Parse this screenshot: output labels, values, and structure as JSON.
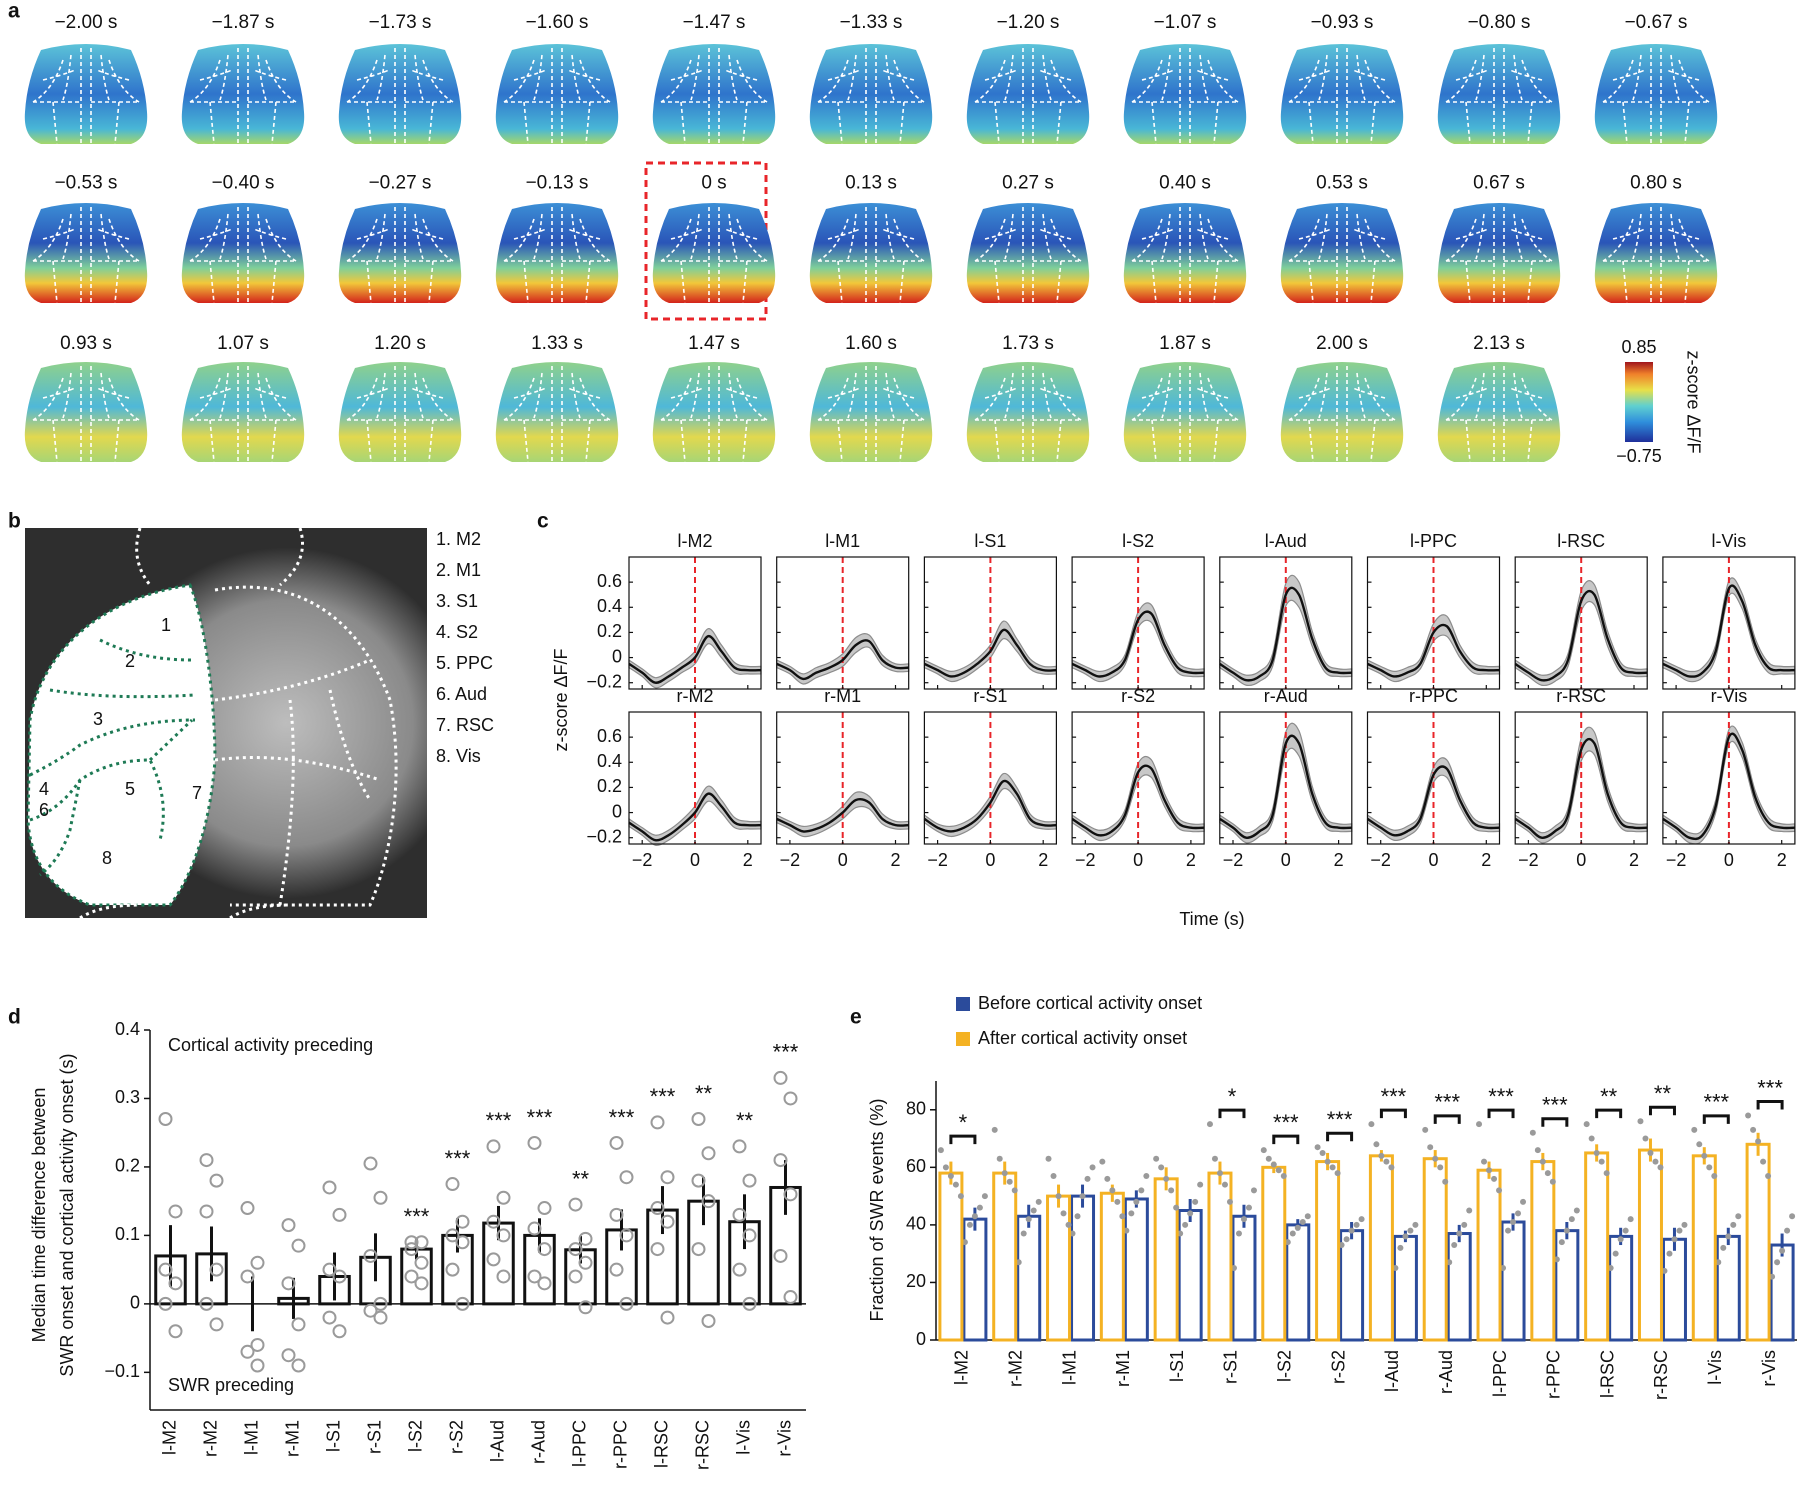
{
  "panel_labels": [
    "a",
    "b",
    "c",
    "d",
    "e"
  ],
  "panel_a": {
    "times": [
      "−2.00 s",
      "−1.87 s",
      "−1.73 s",
      "−1.60 s",
      "−1.47 s",
      "−1.33 s",
      "−1.20 s",
      "−1.07 s",
      "−0.93 s",
      "−0.80 s",
      "−0.67 s",
      "−0.53 s",
      "−0.40 s",
      "−0.27 s",
      "−0.13 s",
      "0 s",
      "0.13 s",
      "0.27 s",
      "0.40 s",
      "0.53 s",
      "0.67 s",
      "0.80 s",
      "0.93 s",
      "1.07 s",
      "1.20 s",
      "1.33 s",
      "1.47 s",
      "1.60 s",
      "1.73 s",
      "1.87 s",
      "2.00 s",
      "2.13 s"
    ],
    "colorbar": {
      "label": "z-score ΔF/F",
      "lim": [
        -0.75,
        0.85
      ],
      "ticks": [
        0.85,
        {
          "value": -0.75,
          "label": "−0.75"
        }
      ]
    }
  },
  "panel_b": {
    "map_labels": [
      "1",
      "2",
      "3",
      "4",
      "5",
      "6",
      "7",
      "8"
    ],
    "legend": [
      "1. M2",
      "2. M1",
      "3. S1",
      "4. S2",
      "5. PPC",
      "6. Aud",
      "7. RSC",
      "8. Vis"
    ]
  },
  "chart_data": [
    {
      "type": "line",
      "xlabel": "Time (s)",
      "ylabel": "z-score ΔF/F",
      "x": [
        -2.5,
        -2,
        -1.5,
        -1,
        -0.5,
        0,
        0.5,
        1,
        1.5,
        2,
        2.5
      ],
      "xlim": [
        -2.5,
        2.5
      ],
      "xticks": [
        {
          "value": -2,
          "label": "−2"
        },
        0,
        2
      ],
      "ylim": [
        -0.25,
        0.8
      ],
      "yticks": [
        {
          "value": -0.2,
          "label": "−0.2"
        },
        0,
        0.2,
        0.4,
        0.6
      ],
      "onset": 0,
      "color": "#111111",
      "band_color": "#c8c8c8",
      "onset_color": "#e8252a",
      "series": [
        {
          "name": "l-M2",
          "values": [
            -0.05,
            -0.12,
            -0.2,
            -0.15,
            -0.08,
            0.0,
            0.17,
            0.05,
            -0.08,
            -0.1,
            -0.1
          ],
          "errors": [
            0.03,
            0.03,
            0.04,
            0.04,
            0.04,
            0.05,
            0.06,
            0.05,
            0.04,
            0.03,
            0.03
          ]
        },
        {
          "name": "l-M1",
          "values": [
            -0.05,
            -0.1,
            -0.17,
            -0.12,
            -0.08,
            -0.02,
            0.1,
            0.13,
            -0.02,
            -0.08,
            -0.08
          ],
          "errors": [
            0.03,
            0.03,
            0.04,
            0.04,
            0.04,
            0.05,
            0.06,
            0.05,
            0.04,
            0.03,
            0.03
          ]
        },
        {
          "name": "l-S1",
          "values": [
            -0.05,
            -0.1,
            -0.15,
            -0.12,
            -0.05,
            0.05,
            0.22,
            0.1,
            -0.05,
            -0.1,
            -0.1
          ],
          "errors": [
            0.03,
            0.03,
            0.04,
            0.04,
            0.04,
            0.05,
            0.07,
            0.05,
            0.04,
            0.03,
            0.03
          ]
        },
        {
          "name": "l-S2",
          "values": [
            -0.05,
            -0.1,
            -0.15,
            -0.12,
            -0.02,
            0.3,
            0.35,
            0.1,
            -0.08,
            -0.12,
            -0.12
          ],
          "errors": [
            0.03,
            0.03,
            0.04,
            0.04,
            0.04,
            0.06,
            0.07,
            0.05,
            0.04,
            0.03,
            0.03
          ]
        },
        {
          "name": "l-Aud",
          "values": [
            -0.05,
            -0.12,
            -0.18,
            -0.15,
            -0.02,
            0.5,
            0.5,
            0.15,
            -0.08,
            -0.12,
            -0.12
          ],
          "errors": [
            0.03,
            0.03,
            0.04,
            0.04,
            0.05,
            0.09,
            0.1,
            0.06,
            0.04,
            0.03,
            0.03
          ]
        },
        {
          "name": "l-PPC",
          "values": [
            -0.05,
            -0.1,
            -0.15,
            -0.12,
            -0.05,
            0.2,
            0.25,
            0.05,
            -0.08,
            -0.1,
            -0.1
          ],
          "errors": [
            0.03,
            0.03,
            0.04,
            0.04,
            0.04,
            0.07,
            0.08,
            0.05,
            0.04,
            0.03,
            0.03
          ]
        },
        {
          "name": "l-RSC",
          "values": [
            -0.05,
            -0.12,
            -0.18,
            -0.15,
            -0.02,
            0.45,
            0.5,
            0.15,
            -0.08,
            -0.12,
            -0.12
          ],
          "errors": [
            0.03,
            0.03,
            0.04,
            0.04,
            0.05,
            0.08,
            0.08,
            0.06,
            0.04,
            0.03,
            0.03
          ]
        },
        {
          "name": "l-Vis",
          "values": [
            -0.05,
            -0.1,
            -0.15,
            -0.12,
            0.05,
            0.55,
            0.45,
            0.1,
            -0.08,
            -0.1,
            -0.1
          ],
          "errors": [
            0.03,
            0.03,
            0.04,
            0.04,
            0.05,
            0.06,
            0.06,
            0.05,
            0.04,
            0.03,
            0.03
          ]
        },
        {
          "name": "r-M2",
          "values": [
            -0.08,
            -0.15,
            -0.22,
            -0.18,
            -0.1,
            0.0,
            0.15,
            0.05,
            -0.08,
            -0.1,
            -0.1
          ],
          "errors": [
            0.03,
            0.03,
            0.04,
            0.04,
            0.04,
            0.05,
            0.06,
            0.05,
            0.04,
            0.03,
            0.03
          ]
        },
        {
          "name": "r-M1",
          "values": [
            -0.05,
            -0.1,
            -0.15,
            -0.13,
            -0.08,
            0.0,
            0.1,
            0.08,
            -0.05,
            -0.1,
            -0.1
          ],
          "errors": [
            0.03,
            0.03,
            0.04,
            0.04,
            0.04,
            0.05,
            0.06,
            0.05,
            0.04,
            0.03,
            0.03
          ]
        },
        {
          "name": "r-S1",
          "values": [
            -0.05,
            -0.12,
            -0.15,
            -0.12,
            -0.05,
            0.08,
            0.25,
            0.15,
            -0.05,
            -0.1,
            -0.1
          ],
          "errors": [
            0.03,
            0.03,
            0.04,
            0.04,
            0.04,
            0.05,
            0.06,
            0.05,
            0.04,
            0.03,
            0.03
          ]
        },
        {
          "name": "r-S2",
          "values": [
            -0.05,
            -0.12,
            -0.18,
            -0.15,
            -0.02,
            0.32,
            0.35,
            0.1,
            -0.08,
            -0.12,
            -0.12
          ],
          "errors": [
            0.03,
            0.03,
            0.04,
            0.04,
            0.04,
            0.07,
            0.07,
            0.05,
            0.04,
            0.03,
            0.03
          ]
        },
        {
          "name": "r-Aud",
          "values": [
            -0.05,
            -0.12,
            -0.2,
            -0.15,
            -0.02,
            0.55,
            0.55,
            0.15,
            -0.08,
            -0.12,
            -0.12
          ],
          "errors": [
            0.03,
            0.03,
            0.04,
            0.04,
            0.05,
            0.09,
            0.1,
            0.06,
            0.04,
            0.03,
            0.03
          ]
        },
        {
          "name": "r-PPC",
          "values": [
            -0.05,
            -0.12,
            -0.18,
            -0.15,
            -0.05,
            0.3,
            0.35,
            0.1,
            -0.08,
            -0.12,
            -0.12
          ],
          "errors": [
            0.03,
            0.03,
            0.04,
            0.04,
            0.04,
            0.06,
            0.07,
            0.05,
            0.04,
            0.03,
            0.03
          ]
        },
        {
          "name": "r-RSC",
          "values": [
            -0.05,
            -0.12,
            -0.2,
            -0.15,
            -0.02,
            0.5,
            0.55,
            0.15,
            -0.08,
            -0.12,
            -0.12
          ],
          "errors": [
            0.03,
            0.03,
            0.04,
            0.04,
            0.05,
            0.09,
            0.09,
            0.06,
            0.04,
            0.03,
            0.03
          ]
        },
        {
          "name": "r-Vis",
          "values": [
            -0.05,
            -0.12,
            -0.2,
            -0.18,
            0.05,
            0.6,
            0.5,
            0.12,
            -0.08,
            -0.12,
            -0.12
          ],
          "errors": [
            0.03,
            0.03,
            0.04,
            0.04,
            0.05,
            0.06,
            0.06,
            0.05,
            0.04,
            0.03,
            0.03
          ]
        }
      ]
    },
    {
      "type": "bar",
      "ylabel": [
        "Median time difference between",
        "SWR onset and cortical activity onset (s)"
      ],
      "annotations": [
        "Cortical activity preceding",
        "SWR preceding"
      ],
      "categories": [
        "l-M2",
        "r-M2",
        "l-M1",
        "r-M1",
        "l-S1",
        "r-S1",
        "l-S2",
        "r-S2",
        "l-Aud",
        "r-Aud",
        "l-PPC",
        "r-PPC",
        "l-RSC",
        "r-RSC",
        "l-Vis",
        "r-Vis"
      ],
      "values": [
        0.07,
        0.073,
        0.0,
        0.008,
        0.04,
        0.068,
        0.08,
        0.1,
        0.118,
        0.1,
        0.079,
        0.108,
        0.137,
        0.15,
        0.12,
        0.17
      ],
      "errors": [
        0.045,
        0.04,
        0.04,
        0.03,
        0.035,
        0.035,
        0.015,
        0.025,
        0.025,
        0.025,
        0.02,
        0.03,
        0.035,
        0.035,
        0.04,
        0.04
      ],
      "points": [
        [
          0.27,
          0.135,
          0.05,
          0.03,
          0.0,
          -0.04
        ],
        [
          0.21,
          0.18,
          0.135,
          0.05,
          0.0,
          -0.03
        ],
        [
          0.14,
          0.06,
          0.04,
          -0.06,
          -0.07,
          -0.09
        ],
        [
          0.115,
          0.085,
          0.03,
          -0.03,
          -0.075,
          -0.09
        ],
        [
          0.17,
          0.13,
          0.05,
          0.04,
          -0.02,
          -0.04
        ],
        [
          0.205,
          0.155,
          0.07,
          0.0,
          -0.01,
          -0.02
        ],
        [
          0.09,
          0.09,
          0.08,
          0.06,
          0.04,
          0.03
        ],
        [
          0.175,
          0.12,
          0.1,
          0.09,
          0.05,
          0.0
        ],
        [
          0.23,
          0.155,
          0.12,
          0.1,
          0.065,
          0.04
        ],
        [
          0.235,
          0.14,
          0.11,
          0.08,
          0.04,
          0.03
        ],
        [
          0.145,
          0.095,
          0.08,
          0.06,
          0.04,
          -0.005
        ],
        [
          0.235,
          0.185,
          0.13,
          0.1,
          0.05,
          0.0
        ],
        [
          0.265,
          0.185,
          0.14,
          0.12,
          0.08,
          -0.02
        ],
        [
          0.27,
          0.22,
          0.18,
          0.15,
          0.08,
          -0.025
        ],
        [
          0.23,
          0.18,
          0.13,
          0.1,
          0.05,
          0.0
        ],
        [
          0.33,
          0.3,
          0.21,
          0.16,
          0.07,
          0.01
        ]
      ],
      "significance": [
        null,
        null,
        null,
        null,
        null,
        null,
        "***",
        "***",
        "***",
        "***",
        "**",
        "***",
        "***",
        "**",
        "**",
        "***"
      ],
      "color": "#111111",
      "point_color": "#9a9a9a",
      "ylim": [
        -0.155,
        0.4
      ],
      "yticks": [
        {
          "value": -0.1,
          "label": "−0.1"
        },
        0,
        0.1,
        0.2,
        0.3,
        0.4
      ]
    },
    {
      "type": "bar",
      "ylabel": "Fraction of SWR events (%)",
      "legend": "upper left",
      "categories": [
        "l-M2",
        "r-M2",
        "l-M1",
        "r-M1",
        "l-S1",
        "r-S1",
        "l-S2",
        "r-S2",
        "l-Aud",
        "r-Aud",
        "l-PPC",
        "r-PPC",
        "l-RSC",
        "r-RSC",
        "l-Vis",
        "r-Vis"
      ],
      "series": [
        {
          "name": "Before cortical activity onset",
          "color": "#2b4b9b",
          "values": [
            42,
            43,
            50,
            49,
            45,
            43,
            40,
            38,
            36,
            37,
            41,
            38,
            36,
            35,
            36,
            33
          ],
          "errors": [
            4,
            4,
            4,
            3,
            4,
            4,
            2,
            3,
            2,
            3,
            3,
            3,
            3,
            4,
            3,
            4
          ],
          "points": [
            [
              34,
              40,
              43,
              46,
              50
            ],
            [
              27,
              37,
              42,
              45,
              48
            ],
            [
              37,
              43,
              50,
              56,
              60
            ],
            [
              38,
              44,
              48,
              52,
              57
            ],
            [
              37,
              40,
              44,
              48,
              54
            ],
            [
              25,
              37,
              42,
              46,
              52
            ],
            [
              34,
              37,
              39,
              41,
              43
            ],
            [
              33,
              35,
              38,
              40,
              42
            ],
            [
              25,
              32,
              36,
              38,
              40
            ],
            [
              27,
              33,
              37,
              40,
              45
            ],
            [
              25,
              38,
              41,
              44,
              48
            ],
            [
              28,
              34,
              38,
              42,
              45
            ],
            [
              25,
              30,
              35,
              38,
              42
            ],
            [
              24,
              30,
              35,
              38,
              40
            ],
            [
              27,
              32,
              36,
              40,
              43
            ],
            [
              22,
              27,
              31,
              38,
              43
            ]
          ]
        },
        {
          "name": "After cortical activity onset",
          "color": "#f4b223",
          "values": [
            58,
            58,
            50,
            51,
            56,
            58,
            60,
            62,
            64,
            63,
            59,
            62,
            65,
            66,
            64,
            68
          ],
          "errors": [
            4,
            4,
            4,
            3,
            4,
            4,
            2,
            3,
            2,
            3,
            3,
            3,
            3,
            4,
            3,
            4
          ],
          "points": [
            [
              66,
              60,
              57,
              54,
              50
            ],
            [
              73,
              63,
              58,
              55,
              52
            ],
            [
              63,
              57,
              50,
              44,
              40
            ],
            [
              62,
              56,
              52,
              48,
              43
            ],
            [
              63,
              60,
              56,
              52,
              46
            ],
            [
              75,
              63,
              58,
              54,
              48
            ],
            [
              66,
              63,
              61,
              59,
              57
            ],
            [
              67,
              65,
              62,
              60,
              58
            ],
            [
              75,
              68,
              64,
              62,
              60
            ],
            [
              73,
              67,
              63,
              60,
              55
            ],
            [
              75,
              62,
              59,
              56,
              52
            ],
            [
              72,
              66,
              62,
              58,
              55
            ],
            [
              75,
              70,
              65,
              62,
              58
            ],
            [
              76,
              70,
              65,
              62,
              60
            ],
            [
              73,
              68,
              64,
              60,
              57
            ],
            [
              78,
              73,
              69,
              62,
              57
            ]
          ]
        }
      ],
      "significance": [
        "*",
        null,
        null,
        null,
        null,
        "*",
        "***",
        "***",
        "***",
        "***",
        "***",
        "***",
        "**",
        "**",
        "***",
        "***"
      ],
      "point_color": "#9a9a9a",
      "ylim": [
        0,
        90
      ],
      "yticks": [
        0,
        20,
        40,
        60,
        80
      ]
    }
  ]
}
